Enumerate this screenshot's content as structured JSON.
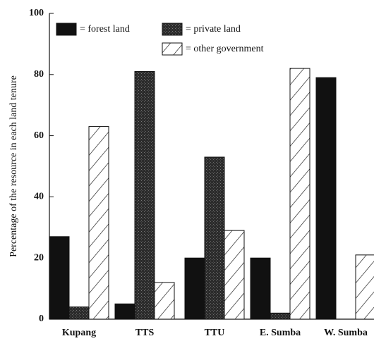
{
  "chart_data": {
    "type": "bar",
    "ylabel": "Percentage of the resource in each land tenure",
    "categories": [
      "Kupang",
      "TTS",
      "TTU",
      "E. Sumba",
      "W. Sumba"
    ],
    "series": [
      {
        "name": "= forest land",
        "color": "#111111",
        "pattern": "solid",
        "values": [
          27,
          5,
          20,
          20,
          79
        ]
      },
      {
        "name": "= private land",
        "color": "#2b2b2b",
        "pattern": "stipple",
        "values": [
          4,
          81,
          53,
          2,
          0
        ]
      },
      {
        "name": "= other government",
        "color": "#ffffff",
        "pattern": "hatch",
        "values": [
          63,
          12,
          29,
          82,
          21
        ]
      }
    ],
    "ylim": [
      0,
      100
    ],
    "yticks": [
      0,
      20,
      40,
      60,
      80,
      100
    ],
    "grid": false
  }
}
